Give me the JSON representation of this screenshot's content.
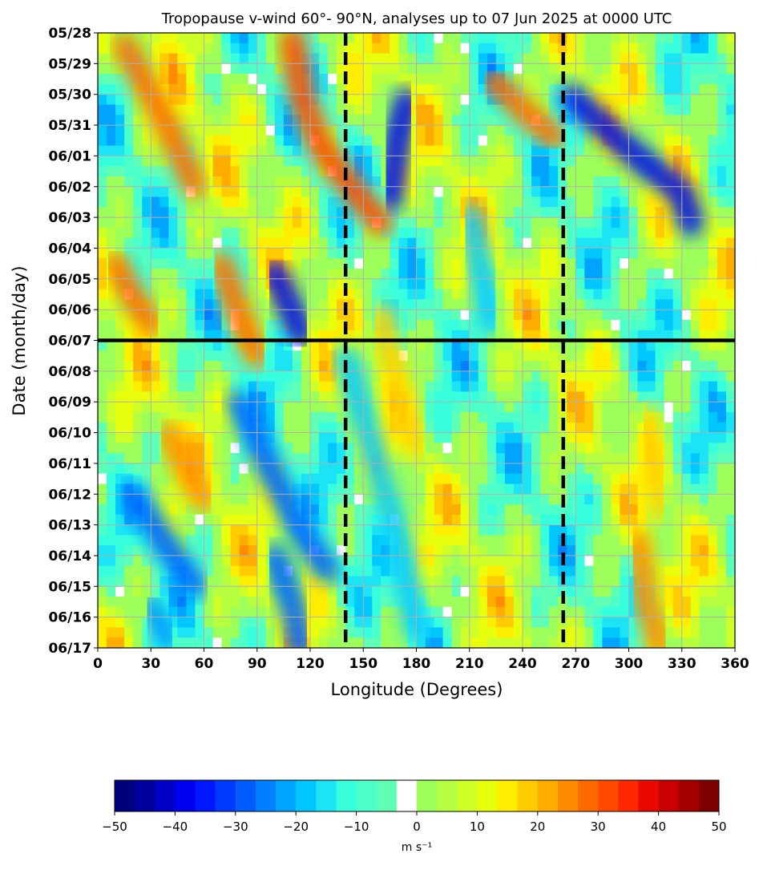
{
  "chart_data": {
    "type": "heatmap",
    "title": "Tropopause v-wind 60°- 90°N, analyses up to 07 Jun 2025 at 0000 UTC",
    "xlabel": "Longitude (Degrees)",
    "ylabel": "Date (month/day)",
    "xlim": [
      0,
      360
    ],
    "x_ticks": [
      0,
      30,
      60,
      90,
      120,
      150,
      180,
      210,
      240,
      270,
      300,
      330,
      360
    ],
    "x_tick_labels": [
      "0",
      "30",
      "60",
      "90",
      "120",
      "150",
      "180",
      "210",
      "240",
      "270",
      "300",
      "330",
      "360"
    ],
    "y_tick_labels": [
      "05/28",
      "05/29",
      "05/30",
      "05/31",
      "06/01",
      "06/02",
      "06/03",
      "06/04",
      "06/05",
      "06/06",
      "06/07",
      "06/08",
      "06/09",
      "06/10",
      "06/11",
      "06/12",
      "06/13",
      "06/14",
      "06/15",
      "06/16",
      "06/17"
    ],
    "grid": true,
    "analysis_date_line": "06/07",
    "reference_longitudes": [
      140,
      263
    ],
    "colorbar": {
      "min": -50,
      "max": 50,
      "tick_values": [
        -50,
        -40,
        -30,
        -20,
        -10,
        0,
        10,
        20,
        30,
        40,
        50
      ],
      "tick_labels": [
        "−50",
        "−40",
        "−30",
        "−20",
        "−10",
        "0",
        "10",
        "20",
        "30",
        "40",
        "50"
      ],
      "unit": "m s⁻¹",
      "colors": [
        "#00007f",
        "#00009f",
        "#0000c8",
        "#0000f1",
        "#0016ff",
        "#003aff",
        "#005cff",
        "#0080ff",
        "#00a4ff",
        "#00c8ff",
        "#1de4f4",
        "#37ffdd",
        "#4dffc9",
        "#60ffb6",
        "#ffffff",
        "#9cff5a",
        "#b6ff40",
        "#ceff28",
        "#e8ff0d",
        "#ffee00",
        "#ffcc00",
        "#ffac00",
        "#ff8c00",
        "#ff6a00",
        "#ff4a00",
        "#ff2800",
        "#ea0900",
        "#c80000",
        "#a40000",
        "#7f0000"
      ]
    },
    "features": [
      {
        "name": "negative band",
        "value": -35,
        "points": [
          [
            165,
            5.4
          ],
          [
            170,
            3.3
          ],
          [
            175,
            2.2
          ]
        ]
      },
      {
        "name": "negative band",
        "value": -35,
        "points": [
          [
            268,
            2.1
          ],
          [
            300,
            3.8
          ],
          [
            330,
            5.2
          ],
          [
            335,
            6.2
          ]
        ]
      },
      {
        "name": "negative band",
        "value": -35,
        "points": [
          [
            100,
            7.8
          ],
          [
            110,
            9.1
          ],
          [
            115,
            9.8
          ]
        ]
      },
      {
        "name": "negative band",
        "value": -25,
        "points": [
          [
            80,
            12
          ],
          [
            100,
            14.5
          ],
          [
            115,
            16.2
          ],
          [
            130,
            17.5
          ]
        ]
      },
      {
        "name": "negative band",
        "value": -25,
        "points": [
          [
            20,
            15
          ],
          [
            40,
            16.8
          ],
          [
            55,
            18
          ]
        ]
      },
      {
        "name": "negative band",
        "value": -25,
        "points": [
          [
            100,
            17
          ],
          [
            110,
            18.6
          ],
          [
            115,
            20
          ]
        ]
      },
      {
        "name": "negative band",
        "value": -20,
        "points": [
          [
            30,
            18.6
          ],
          [
            40,
            19.8
          ]
        ]
      },
      {
        "name": "negative band",
        "value": -15,
        "points": [
          [
            140,
            10.5
          ],
          [
            150,
            12.5
          ],
          [
            160,
            14.5
          ],
          [
            170,
            16.5
          ],
          [
            180,
            19.5
          ]
        ]
      },
      {
        "name": "negative band",
        "value": -15,
        "points": [
          [
            210,
            6
          ],
          [
            218,
            8
          ],
          [
            222,
            9.5
          ]
        ]
      },
      {
        "name": "positive band",
        "value": 25,
        "points": [
          [
            15,
            0.4
          ],
          [
            35,
            2.5
          ],
          [
            55,
            5
          ]
        ]
      },
      {
        "name": "positive band",
        "value": 28,
        "points": [
          [
            110,
            0.2
          ],
          [
            115,
            2
          ],
          [
            125,
            3.6
          ],
          [
            140,
            4.8
          ],
          [
            160,
            6.2
          ]
        ]
      },
      {
        "name": "positive band",
        "value": 25,
        "points": [
          [
            225,
            1.6
          ],
          [
            240,
            2.5
          ],
          [
            258,
            3.4
          ]
        ]
      },
      {
        "name": "positive band",
        "value": 25,
        "points": [
          [
            10,
            7.5
          ],
          [
            20,
            8.6
          ],
          [
            30,
            9.5
          ]
        ]
      },
      {
        "name": "positive band",
        "value": 25,
        "points": [
          [
            70,
            7.5
          ],
          [
            80,
            9.2
          ],
          [
            90,
            10.5
          ]
        ]
      },
      {
        "name": "positive band",
        "value": 20,
        "points": [
          [
            40,
            13
          ],
          [
            50,
            14.2
          ],
          [
            60,
            15.2
          ]
        ]
      },
      {
        "name": "positive band",
        "value": 20,
        "points": [
          [
            305,
            16.5
          ],
          [
            310,
            18.5
          ],
          [
            318,
            20
          ]
        ]
      },
      {
        "name": "positive band",
        "value": 15,
        "points": [
          [
            310,
            12.5
          ],
          [
            315,
            14
          ],
          [
            318,
            15.5
          ]
        ]
      },
      {
        "name": "positive band",
        "value": 15,
        "points": [
          [
            160,
            9.2
          ],
          [
            170,
            11.5
          ],
          [
            180,
            13.5
          ]
        ]
      }
    ]
  }
}
